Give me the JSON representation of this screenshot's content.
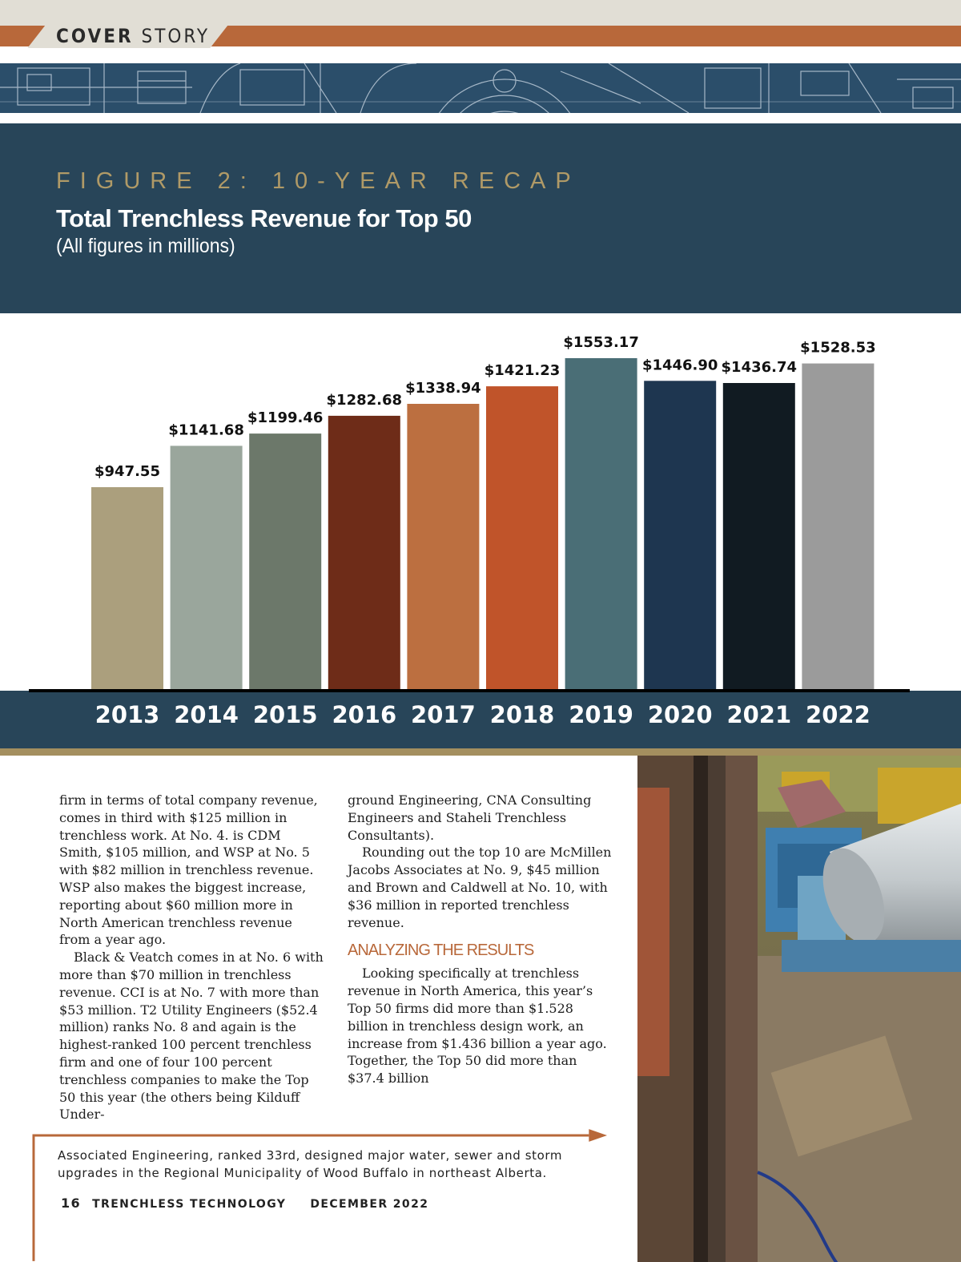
{
  "header": {
    "section_bold": "COVER",
    "section_light": "STORY"
  },
  "figure": {
    "kicker": "FIGURE 2: 10-YEAR RECAP",
    "title": "Total Trenchless Revenue for Top 50",
    "subtitle": "(All figures in millions)"
  },
  "chart_data": {
    "type": "bar",
    "title": "Total Trenchless Revenue for Top 50",
    "subtitle": "(All figures in millions)",
    "categories": [
      "2013",
      "2014",
      "2015",
      "2016",
      "2017",
      "2018",
      "2019",
      "2020",
      "2021",
      "2022"
    ],
    "values": [
      947.55,
      1141.68,
      1199.46,
      1282.68,
      1338.94,
      1421.23,
      1553.17,
      1446.9,
      1436.74,
      1528.53
    ],
    "data_labels": [
      "$947.55",
      "$1141.68",
      "$1199.46",
      "$1282.68",
      "$1338.94",
      "$1421.23",
      "$1553.17",
      "$1446.90",
      "$1436.74",
      "$1528.53"
    ],
    "bar_colors": [
      "#ab9f7d",
      "#9aa69c",
      "#6c786a",
      "#6e2c18",
      "#bc6f40",
      "#c0542a",
      "#4a6e76",
      "#1e3650",
      "#111b22",
      "#9b9b9b"
    ],
    "ylim": [
      0,
      1553.17
    ],
    "grid": false,
    "legend": "none"
  },
  "article": {
    "col1_p1": "firm in terms of total company revenue, comes in third with $125 million in trenchless work. At No. 4. is CDM Smith, $105 million, and WSP at No. 5 with $82 million in trenchless revenue. WSP also makes the biggest increase, reporting about $60 million more in North American trenchless revenue from a year ago.",
    "col1_p2": "Black & Veatch comes in at No. 6 with more than $70 million in trenchless revenue. CCI is at No. 7 with more than $53 million. T2 Utility Engineers ($52.4 million) ranks No. 8 and again is the highest-ranked 100 percent trenchless firm and one of four 100 percent trenchless companies to make the Top 50 this year (the others being Kilduff Under-",
    "col2_p1": "ground Engineering, CNA Consulting Engineers and Staheli Trenchless Consultants).",
    "col2_p2": "Rounding out the top 10 are McMillen Jacobs Associates at No. 9, $45 million and Brown and Caldwell at No. 10, with $36 million in reported trenchless revenue.",
    "subhead": "ANALYZING THE RESULTS",
    "col2_p3": "Looking specifically at trenchless revenue in North America, this year’s Top 50 firms did more than $1.528 billion in trenchless design work, an increase from $1.436 billion a year ago. Together, the Top 50 did more than $37.4 billion"
  },
  "caption": "Associated Engineering, ranked 33rd, designed major water, sewer and storm upgrades in the Regional Municipality of Wood Buffalo in northeast Alberta.",
  "footer": {
    "page": "16",
    "publication": "TRENCHLESS TECHNOLOGY",
    "issue": "DECEMBER 2022"
  }
}
